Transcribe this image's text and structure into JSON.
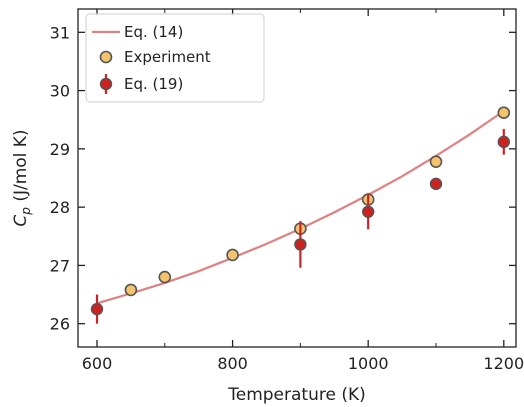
{
  "chart_data": {
    "type": "scatter",
    "title": "",
    "xlabel": "Temperature (K)",
    "ylabel_main": "C",
    "ylabel_sub": "p",
    "ylabel_unit": " (J/mol K)",
    "xlim": [
      572,
      1218
    ],
    "ylim": [
      25.6,
      31.4
    ],
    "xticks": [
      600,
      800,
      1000,
      1200
    ],
    "yticks": [
      26,
      27,
      28,
      29,
      30,
      31
    ],
    "legend_position": "top-left",
    "series": [
      {
        "name": "Eq. (14)",
        "kind": "line",
        "color": "#e08080",
        "x": [
          600,
          650,
          700,
          750,
          800,
          850,
          900,
          950,
          1000,
          1050,
          1100,
          1150,
          1200
        ],
        "y": [
          26.35,
          26.52,
          26.7,
          26.9,
          27.13,
          27.37,
          27.63,
          27.91,
          28.21,
          28.53,
          28.88,
          29.25,
          29.65
        ]
      },
      {
        "name": "Experiment",
        "kind": "scatter",
        "color": "#f5c36b",
        "edge_color": "#555555",
        "x": [
          650,
          700,
          800,
          900,
          1000,
          1100,
          1200
        ],
        "y": [
          26.58,
          26.8,
          27.18,
          27.63,
          28.13,
          28.78,
          29.62
        ],
        "yerr": [
          0.02,
          0.1,
          0.1,
          0.1,
          0.12,
          0.05,
          0.05
        ]
      },
      {
        "name": "Eq. (19)",
        "kind": "errorbar",
        "color": "#cc2222",
        "edge_color": "#555555",
        "x": [
          600,
          900,
          1000,
          1100,
          1200
        ],
        "y": [
          26.25,
          27.36,
          27.92,
          28.4,
          29.12
        ],
        "yerr": [
          0.25,
          0.4,
          0.3,
          0.05,
          0.22
        ]
      }
    ]
  }
}
